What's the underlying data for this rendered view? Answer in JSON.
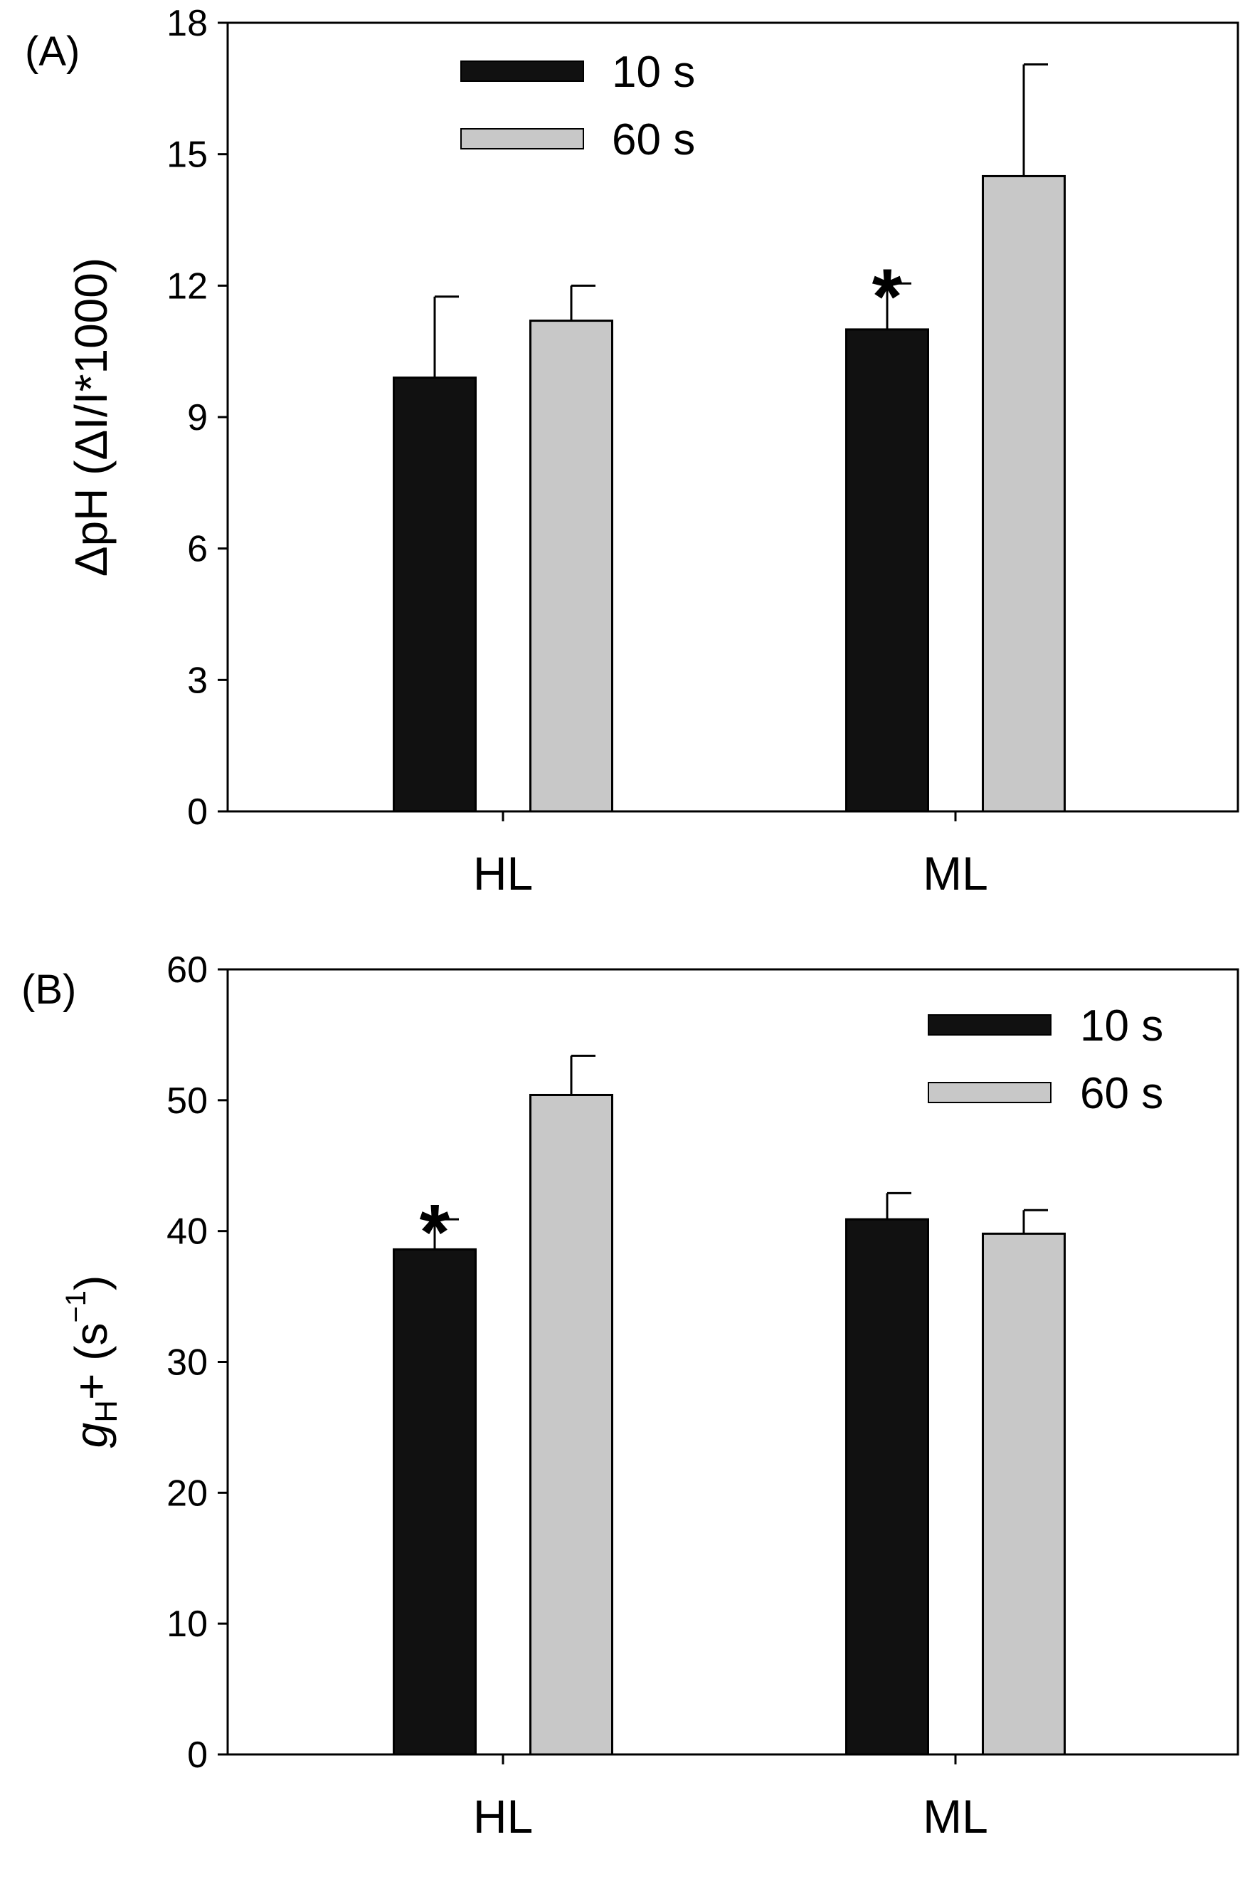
{
  "chart_data": [
    {
      "type": "bar",
      "panel_label": "(A)",
      "categories": [
        "HL",
        "ML"
      ],
      "series": [
        {
          "name": "10 s",
          "color": "#111111",
          "values": [
            9.9,
            11.0
          ],
          "errors": [
            1.85,
            1.05
          ]
        },
        {
          "name": "60 s",
          "color": "#c8c8c8",
          "values": [
            11.2,
            14.5
          ],
          "errors": [
            0.8,
            2.55
          ]
        }
      ],
      "ylabel": {
        "main": "ΔpH (ΔI/I*1000)"
      },
      "ylim": [
        0,
        18
      ],
      "yticks": [
        "0",
        "3",
        "6",
        "9",
        "12",
        "15",
        "18"
      ],
      "legend": {
        "position": "top-center"
      },
      "annotations": [
        {
          "text": "*",
          "category": "ML",
          "series": "10 s"
        }
      ]
    },
    {
      "type": "bar",
      "panel_label": "(B)",
      "categories": [
        "HL",
        "ML"
      ],
      "series": [
        {
          "name": "10 s",
          "color": "#111111",
          "values": [
            38.6,
            40.9
          ],
          "errors": [
            2.3,
            2.0
          ]
        },
        {
          "name": "60 s",
          "color": "#c8c8c8",
          "values": [
            50.4,
            39.8
          ],
          "errors": [
            3.0,
            1.8
          ]
        }
      ],
      "ylabel": {
        "main": "g",
        "sub": "H",
        "after": "+ (s",
        "sup": "−1",
        "close": ")"
      },
      "ylim": [
        0,
        60
      ],
      "yticks": [
        "0",
        "10",
        "20",
        "30",
        "40",
        "50",
        "60"
      ],
      "legend": {
        "position": "top-right"
      },
      "annotations": [
        {
          "text": "*",
          "category": "HL",
          "series": "10 s"
        }
      ]
    }
  ]
}
